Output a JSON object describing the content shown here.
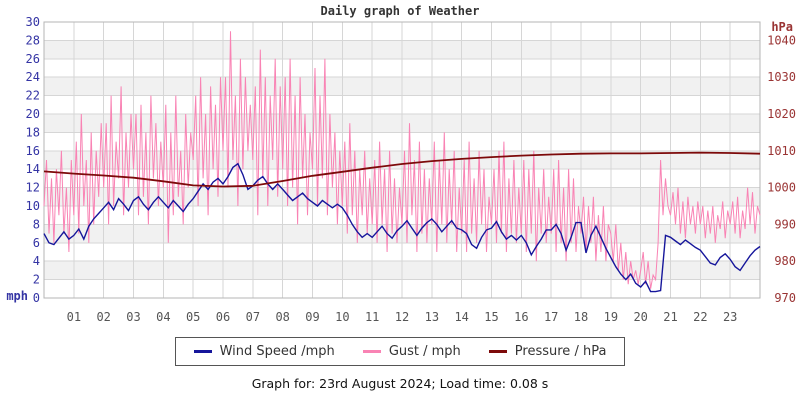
{
  "title": "Daily graph of Weather",
  "caption": "Graph for: 23rd August 2024; Load time: 0.08 s",
  "colors": {
    "wind": "#16169b",
    "gust": "#f983b4",
    "pressure": "#7d0a0a",
    "left_axis": "#3434a4",
    "right_axis": "#9a3434",
    "x_axis": "#555555",
    "grid": "#d6d6d6",
    "band": "#f1f1f1",
    "border": "#b5b5b5",
    "title": "#333333"
  },
  "axes": {
    "left_unit": "mph",
    "right_unit": "hPa",
    "left_ticks": [
      0,
      2,
      4,
      6,
      8,
      10,
      12,
      14,
      16,
      18,
      20,
      22,
      24,
      26,
      28,
      30
    ],
    "right_ticks": [
      970,
      980,
      990,
      1000,
      1010,
      1020,
      1030,
      1040
    ],
    "x_ticks": [
      "01",
      "02",
      "03",
      "04",
      "05",
      "06",
      "07",
      "08",
      "09",
      "10",
      "11",
      "12",
      "13",
      "14",
      "15",
      "16",
      "17",
      "18",
      "19",
      "20",
      "21",
      "22",
      "23"
    ],
    "left_range": [
      0,
      30
    ],
    "right_range": [
      970,
      1045
    ],
    "x_range_hours": [
      0,
      24
    ]
  },
  "legend": {
    "items": [
      {
        "label": "Wind Speed /mph",
        "color_key": "wind"
      },
      {
        "label": "Gust / mph",
        "color_key": "gust"
      },
      {
        "label": "Pressure / hPa",
        "color_key": "pressure"
      }
    ]
  },
  "chart_data": {
    "type": "line",
    "title": "Daily graph of Weather",
    "x_unit": "hour of day (00-24)",
    "grid": true,
    "legend_position": "bottom",
    "ylim_left": [
      0,
      30
    ],
    "ylim_right": [
      970,
      1045
    ],
    "series": [
      {
        "name": "Gust / mph",
        "data_name": "gust-line",
        "color_key": "gust",
        "axis": "left",
        "step_minutes": 5,
        "stroke_width": 1,
        "values": [
          10,
          15,
          7,
          13,
          6,
          14,
          9,
          16,
          7,
          12,
          5,
          15,
          9,
          17,
          7,
          20,
          10,
          15,
          6,
          18,
          8,
          16,
          11,
          19,
          12,
          19,
          8,
          22,
          10,
          17,
          13,
          23,
          9,
          18,
          12,
          20,
          14,
          20,
          9,
          21,
          11,
          18,
          8,
          22,
          13,
          19,
          10,
          17,
          12,
          21,
          6,
          18,
          9,
          22,
          11,
          16,
          8,
          20,
          12,
          18,
          15,
          22,
          10,
          24,
          13,
          20,
          9,
          23,
          14,
          21,
          11,
          24,
          16,
          24,
          12,
          29,
          15,
          22,
          10,
          26,
          14,
          24,
          16,
          21,
          15,
          23,
          9,
          27,
          13,
          24,
          10,
          22,
          15,
          26,
          11,
          23,
          14,
          24,
          10,
          26,
          12,
          22,
          8,
          24,
          13,
          20,
          9,
          18,
          14,
          25,
          10,
          22,
          13,
          26,
          9,
          20,
          12,
          18,
          8,
          16,
          10,
          17,
          7,
          19,
          9,
          16,
          6,
          14,
          9,
          16,
          7,
          13,
          8,
          15,
          6,
          17,
          8,
          14,
          5,
          16,
          7,
          13,
          6,
          12,
          8,
          16,
          6,
          19,
          9,
          15,
          5,
          17,
          7,
          14,
          6,
          13,
          8,
          17,
          5,
          15,
          8,
          18,
          6,
          14,
          8,
          16,
          5,
          12,
          7,
          15,
          5,
          17,
          7,
          13,
          6,
          16,
          8,
          14,
          5,
          11,
          8,
          14,
          6,
          16,
          7,
          17,
          5,
          13,
          7,
          15,
          6,
          12,
          7,
          15,
          5,
          14,
          7,
          16,
          4,
          12,
          7,
          14,
          6,
          11,
          7,
          14,
          5,
          15,
          6,
          12,
          4,
          14,
          6,
          13,
          5,
          10,
          7,
          11,
          5,
          10,
          6,
          11,
          4,
          9,
          5,
          10,
          4,
          8,
          7,
          4,
          8,
          3,
          6,
          2,
          5,
          1.5,
          4,
          2,
          3,
          1.5,
          3,
          5,
          1.5,
          4,
          1,
          2.5,
          2,
          6,
          15,
          9,
          13,
          10,
          9,
          11.5,
          8,
          12,
          7,
          10.5,
          6.5,
          11,
          8,
          10,
          7,
          10.5,
          8,
          10,
          6.5,
          9.5,
          7,
          10,
          6,
          9,
          7.5,
          10.5,
          6.5,
          9.5,
          8,
          10.5,
          7,
          11,
          6.5,
          9.5,
          7.5,
          12,
          8,
          11.5,
          7,
          10,
          9
        ]
      },
      {
        "name": "Wind Speed /mph",
        "data_name": "wind-speed-line",
        "color_key": "wind",
        "axis": "left",
        "step_minutes": 10,
        "stroke_width": 1.4,
        "values": [
          7.0,
          6.0,
          5.8,
          6.5,
          7.2,
          6.4,
          6.8,
          7.5,
          6.4,
          7.8,
          8.6,
          9.2,
          9.8,
          10.4,
          9.6,
          10.8,
          10.2,
          9.5,
          10.6,
          11.0,
          10.2,
          9.6,
          10.4,
          11.0,
          10.4,
          9.8,
          10.6,
          10.0,
          9.4,
          10.2,
          10.8,
          11.6,
          12.4,
          11.8,
          12.6,
          13.0,
          12.4,
          13.2,
          14.2,
          14.6,
          13.4,
          11.8,
          12.2,
          12.8,
          13.2,
          12.4,
          11.8,
          12.4,
          11.8,
          11.2,
          10.6,
          11.0,
          11.4,
          10.8,
          10.4,
          10.0,
          10.6,
          10.2,
          9.8,
          10.2,
          9.8,
          9.0,
          8.0,
          7.2,
          6.6,
          7.0,
          6.6,
          7.2,
          7.8,
          7.0,
          6.5,
          7.3,
          7.8,
          8.4,
          7.6,
          6.8,
          7.6,
          8.2,
          8.6,
          8.0,
          7.2,
          7.8,
          8.4,
          7.6,
          7.4,
          7.0,
          5.8,
          5.4,
          6.6,
          7.4,
          7.6,
          8.3,
          7.2,
          6.4,
          6.8,
          6.3,
          6.8,
          6.0,
          4.7,
          5.6,
          6.4,
          7.4,
          7.4,
          8.0,
          7.0,
          5.2,
          6.6,
          8.2,
          8.2,
          4.9,
          6.8,
          7.8,
          6.6,
          5.4,
          4.4,
          3.4,
          2.6,
          2.0,
          2.6,
          1.6,
          1.2,
          1.8,
          0.7,
          0.7,
          0.8,
          6.8,
          6.6,
          6.2,
          5.8,
          6.3,
          5.9,
          5.5,
          5.2,
          4.5,
          3.8,
          3.6,
          4.4,
          4.8,
          4.2,
          3.4,
          3.0,
          3.8,
          4.6,
          5.2,
          5.6
        ]
      },
      {
        "name": "Pressure / hPa",
        "data_name": "pressure-line",
        "color_key": "pressure",
        "axis": "right",
        "step_minutes": 60,
        "stroke_width": 1.8,
        "values": [
          1004.4,
          1003.8,
          1003.3,
          1002.7,
          1001.7,
          1000.6,
          1000.3,
          1000.5,
          1001.8,
          1003.2,
          1004.3,
          1005.4,
          1006.4,
          1007.2,
          1007.8,
          1008.3,
          1008.7,
          1009.0,
          1009.2,
          1009.3,
          1009.3,
          1009.4,
          1009.5,
          1009.4,
          1009.2
        ]
      }
    ]
  }
}
